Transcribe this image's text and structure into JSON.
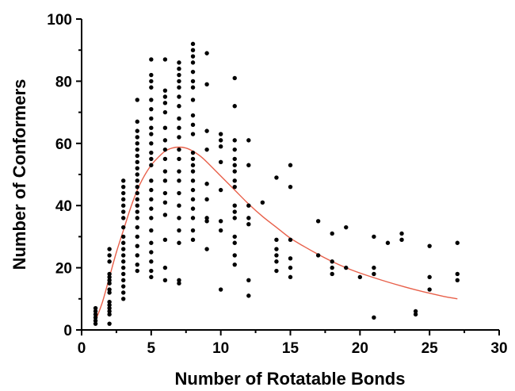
{
  "chart_data": {
    "type": "scatter",
    "title": "",
    "xlabel": "Number of Rotatable Bonds",
    "ylabel": "Number of Conformers",
    "xlim": [
      0,
      30
    ],
    "ylim": [
      0,
      100
    ],
    "x_ticks": [
      "0",
      "5",
      "10",
      "15",
      "20",
      "25",
      "30"
    ],
    "y_ticks": [
      "0",
      "20",
      "40",
      "60",
      "80",
      "100"
    ],
    "grid": false,
    "legend": "none",
    "colors": {
      "points": "#000000",
      "fit": "#e8604a",
      "axis": "#000000"
    },
    "series": [
      {
        "kind": "points",
        "points": [
          [
            1,
            2
          ],
          [
            1,
            3
          ],
          [
            1,
            4
          ],
          [
            1,
            5
          ],
          [
            1,
            6
          ],
          [
            1,
            7
          ],
          [
            2,
            2
          ],
          [
            2,
            5
          ],
          [
            2,
            6
          ],
          [
            2,
            7
          ],
          [
            2,
            8
          ],
          [
            2,
            9
          ],
          [
            2,
            12
          ],
          [
            2,
            13
          ],
          [
            2,
            15
          ],
          [
            2,
            16
          ],
          [
            2,
            17
          ],
          [
            2,
            18
          ],
          [
            2,
            22
          ],
          [
            2,
            24
          ],
          [
            2,
            26
          ],
          [
            3,
            10
          ],
          [
            3,
            12
          ],
          [
            3,
            14
          ],
          [
            3,
            16
          ],
          [
            3,
            18
          ],
          [
            3,
            20
          ],
          [
            3,
            22
          ],
          [
            3,
            24
          ],
          [
            3,
            26
          ],
          [
            3,
            28
          ],
          [
            3,
            30
          ],
          [
            3,
            33
          ],
          [
            3,
            36
          ],
          [
            3,
            38
          ],
          [
            3,
            40
          ],
          [
            3,
            42
          ],
          [
            3,
            44
          ],
          [
            3,
            46
          ],
          [
            3,
            48
          ],
          [
            4,
            19
          ],
          [
            4,
            21
          ],
          [
            4,
            24
          ],
          [
            4,
            27
          ],
          [
            4,
            30
          ],
          [
            4,
            33
          ],
          [
            4,
            36
          ],
          [
            4,
            38
          ],
          [
            4,
            40
          ],
          [
            4,
            42
          ],
          [
            4,
            44
          ],
          [
            4,
            46
          ],
          [
            4,
            48
          ],
          [
            4,
            50
          ],
          [
            4,
            52
          ],
          [
            4,
            54
          ],
          [
            4,
            56
          ],
          [
            4,
            58
          ],
          [
            4,
            60
          ],
          [
            4,
            62
          ],
          [
            4,
            64
          ],
          [
            4,
            67
          ],
          [
            4,
            74
          ],
          [
            5,
            17
          ],
          [
            5,
            19
          ],
          [
            5,
            22
          ],
          [
            5,
            25
          ],
          [
            5,
            28
          ],
          [
            5,
            32
          ],
          [
            5,
            36
          ],
          [
            5,
            39
          ],
          [
            5,
            42
          ],
          [
            5,
            45
          ],
          [
            5,
            48
          ],
          [
            5,
            53
          ],
          [
            5,
            55
          ],
          [
            5,
            57
          ],
          [
            5,
            60
          ],
          [
            5,
            63
          ],
          [
            5,
            65
          ],
          [
            5,
            68
          ],
          [
            5,
            71
          ],
          [
            5,
            74
          ],
          [
            5,
            78
          ],
          [
            5,
            80
          ],
          [
            5,
            82
          ],
          [
            5,
            87
          ],
          [
            6,
            16
          ],
          [
            6,
            20
          ],
          [
            6,
            29
          ],
          [
            6,
            37
          ],
          [
            6,
            41
          ],
          [
            6,
            44
          ],
          [
            6,
            48
          ],
          [
            6,
            51
          ],
          [
            6,
            55
          ],
          [
            6,
            58
          ],
          [
            6,
            61
          ],
          [
            6,
            65
          ],
          [
            6,
            70
          ],
          [
            6,
            73
          ],
          [
            6,
            75
          ],
          [
            6,
            77
          ],
          [
            6,
            87
          ],
          [
            7,
            15
          ],
          [
            7,
            16
          ],
          [
            7,
            28
          ],
          [
            7,
            32
          ],
          [
            7,
            36
          ],
          [
            7,
            40
          ],
          [
            7,
            44
          ],
          [
            7,
            48
          ],
          [
            7,
            51
          ],
          [
            7,
            55
          ],
          [
            7,
            58
          ],
          [
            7,
            62
          ],
          [
            7,
            65
          ],
          [
            7,
            68
          ],
          [
            7,
            72
          ],
          [
            7,
            75
          ],
          [
            7,
            78
          ],
          [
            7,
            80
          ],
          [
            7,
            82
          ],
          [
            7,
            84
          ],
          [
            7,
            86
          ],
          [
            8,
            29
          ],
          [
            8,
            32
          ],
          [
            8,
            36
          ],
          [
            8,
            39
          ],
          [
            8,
            42
          ],
          [
            8,
            45
          ],
          [
            8,
            48
          ],
          [
            8,
            51
          ],
          [
            8,
            53
          ],
          [
            8,
            55
          ],
          [
            8,
            57
          ],
          [
            8,
            63
          ],
          [
            8,
            66
          ],
          [
            8,
            69
          ],
          [
            8,
            74
          ],
          [
            8,
            78
          ],
          [
            8,
            80
          ],
          [
            8,
            83
          ],
          [
            8,
            86
          ],
          [
            8,
            88
          ],
          [
            8,
            90
          ],
          [
            8,
            92
          ],
          [
            9,
            26
          ],
          [
            9,
            35
          ],
          [
            9,
            36
          ],
          [
            9,
            42
          ],
          [
            9,
            47
          ],
          [
            9,
            58
          ],
          [
            9,
            64
          ],
          [
            9,
            79
          ],
          [
            9,
            89
          ],
          [
            10,
            13
          ],
          [
            10,
            32
          ],
          [
            10,
            35
          ],
          [
            10,
            45
          ],
          [
            10,
            54
          ],
          [
            10,
            59
          ],
          [
            10,
            61
          ],
          [
            10,
            63
          ],
          [
            11,
            21
          ],
          [
            11,
            24
          ],
          [
            11,
            28
          ],
          [
            11,
            30
          ],
          [
            11,
            36
          ],
          [
            11,
            38
          ],
          [
            11,
            40
          ],
          [
            11,
            46
          ],
          [
            11,
            48
          ],
          [
            11,
            51
          ],
          [
            11,
            53
          ],
          [
            11,
            55
          ],
          [
            11,
            58
          ],
          [
            11,
            61
          ],
          [
            11,
            72
          ],
          [
            11,
            81
          ],
          [
            12,
            11
          ],
          [
            12,
            16
          ],
          [
            12,
            34
          ],
          [
            12,
            36
          ],
          [
            12,
            40
          ],
          [
            12,
            53
          ],
          [
            12,
            61
          ],
          [
            13,
            41
          ],
          [
            14,
            19
          ],
          [
            14,
            22
          ],
          [
            14,
            24
          ],
          [
            14,
            26
          ],
          [
            14,
            29
          ],
          [
            14,
            49
          ],
          [
            15,
            17
          ],
          [
            15,
            20
          ],
          [
            15,
            23
          ],
          [
            15,
            29
          ],
          [
            15,
            46
          ],
          [
            15,
            53
          ],
          [
            17,
            24
          ],
          [
            17,
            35
          ],
          [
            18,
            18
          ],
          [
            18,
            20
          ],
          [
            18,
            22
          ],
          [
            18,
            31
          ],
          [
            19,
            20
          ],
          [
            19,
            33
          ],
          [
            20,
            17
          ],
          [
            21,
            4
          ],
          [
            21,
            18
          ],
          [
            21,
            20
          ],
          [
            21,
            30
          ],
          [
            22,
            28
          ],
          [
            23,
            29
          ],
          [
            23,
            31
          ],
          [
            24,
            5
          ],
          [
            24,
            6
          ],
          [
            25,
            13
          ],
          [
            25,
            17
          ],
          [
            25,
            27
          ],
          [
            27,
            16
          ],
          [
            27,
            18
          ],
          [
            27,
            28
          ]
        ]
      },
      {
        "kind": "fit-curve",
        "points": [
          [
            1,
            3
          ],
          [
            1.5,
            9
          ],
          [
            2,
            17
          ],
          [
            2.5,
            25
          ],
          [
            3,
            32
          ],
          [
            3.5,
            39
          ],
          [
            4,
            45
          ],
          [
            4.5,
            49.5
          ],
          [
            5,
            53
          ],
          [
            5.5,
            55.5
          ],
          [
            6,
            57.5
          ],
          [
            6.5,
            58.5
          ],
          [
            7,
            58.8
          ],
          [
            7.5,
            58.5
          ],
          [
            8,
            57.5
          ],
          [
            8.5,
            56
          ],
          [
            9,
            54
          ],
          [
            10,
            49.5
          ],
          [
            11,
            45
          ],
          [
            12,
            40.5
          ],
          [
            13,
            36.5
          ],
          [
            14,
            33
          ],
          [
            15,
            29.5
          ],
          [
            16,
            26.8
          ],
          [
            17,
            24.3
          ],
          [
            18,
            22
          ],
          [
            19,
            20
          ],
          [
            20,
            18.3
          ],
          [
            21,
            16.8
          ],
          [
            22,
            15.4
          ],
          [
            23,
            14.1
          ],
          [
            24,
            12.9
          ],
          [
            25,
            11.8
          ],
          [
            26,
            10.8
          ],
          [
            27,
            10
          ]
        ]
      }
    ]
  }
}
